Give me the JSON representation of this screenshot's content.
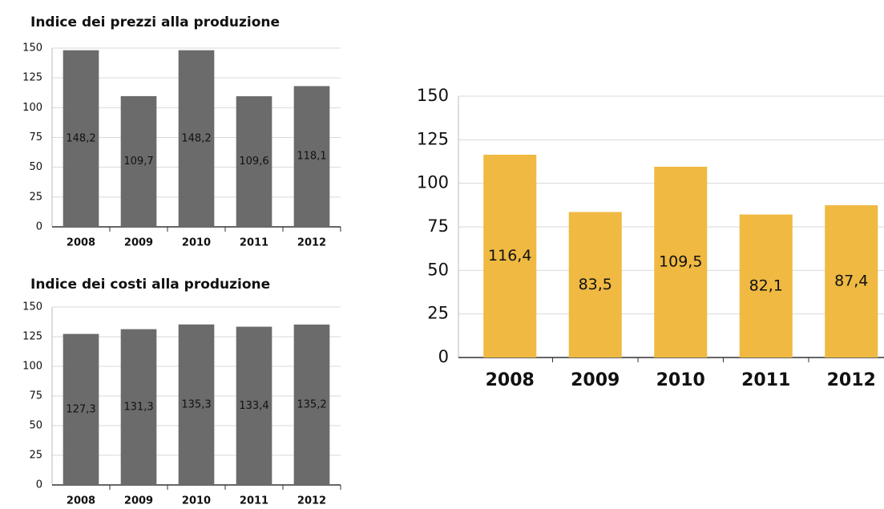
{
  "chart_data": [
    {
      "type": "bar",
      "title": "Indice dei prezzi alla produzione",
      "categories": [
        "2008",
        "2009",
        "2010",
        "2011",
        "2012"
      ],
      "values": [
        148.2,
        109.7,
        148.2,
        109.6,
        118.1
      ],
      "value_labels": [
        "148,2",
        "109,7",
        "148,2",
        "109,6",
        "118,1"
      ],
      "color": "#6b6b6b",
      "ylim": [
        0,
        150
      ],
      "yticks": [
        0,
        25,
        50,
        75,
        100,
        125,
        150
      ],
      "grid": true
    },
    {
      "type": "bar",
      "title": "Indice dei costi alla produzione",
      "categories": [
        "2008",
        "2009",
        "2010",
        "2011",
        "2012"
      ],
      "values": [
        127.3,
        131.3,
        135.3,
        133.4,
        135.2
      ],
      "value_labels": [
        "127,3",
        "131,3",
        "135,3",
        "133,4",
        "135,2"
      ],
      "color": "#6b6b6b",
      "ylim": [
        0,
        150
      ],
      "yticks": [
        0,
        25,
        50,
        75,
        100,
        125,
        150
      ],
      "grid": true
    },
    {
      "type": "bar",
      "categories": [
        "2008",
        "2009",
        "2010",
        "2011",
        "2012"
      ],
      "values": [
        116.4,
        83.5,
        109.5,
        82.1,
        87.4
      ],
      "value_labels": [
        "116,4",
        "83,5",
        "109,5",
        "82,1",
        "87,4"
      ],
      "color": "#efb942",
      "ylim": [
        0,
        150
      ],
      "yticks": [
        0,
        25,
        50,
        75,
        100,
        125,
        150
      ],
      "grid": true
    }
  ]
}
